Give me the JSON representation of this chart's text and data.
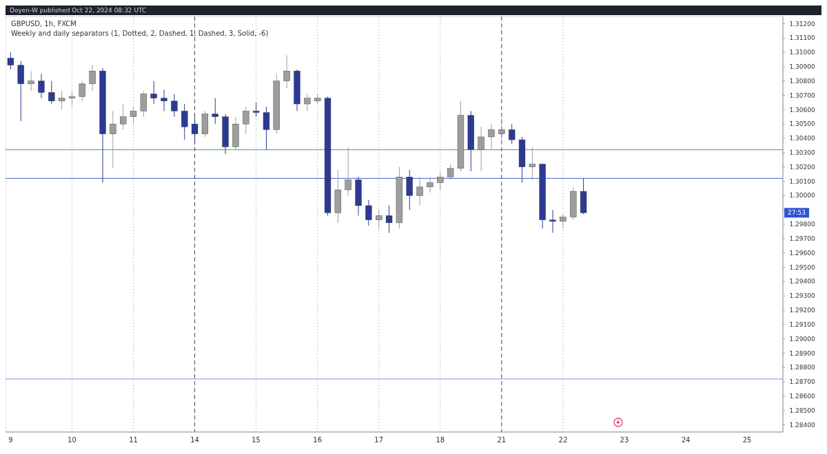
{
  "chart_data": {
    "type": "candlestick",
    "title": "GBPUSD, 1h, FXCM",
    "subtitle": "Weekly and daily separators (1, Dotted, 2, Dashed, 1, Dashed, 3, Solid, -6)",
    "annotations": [
      "Doyen-W published Oct 22, 2024 08:32 UTC",
      {
        "text": "27:53",
        "y": 1.2988
      }
    ],
    "categories": [
      "9",
      null,
      null,
      null,
      null,
      null,
      "10",
      null,
      null,
      null,
      null,
      null,
      "11",
      null,
      null,
      null,
      null,
      null,
      "14",
      null,
      null,
      null,
      null,
      null,
      "15",
      null,
      null,
      null,
      null,
      null,
      "16",
      null,
      null,
      null,
      null,
      null,
      "17",
      null,
      null,
      null,
      null,
      null,
      "18",
      null,
      null,
      null,
      null,
      null,
      "21",
      null,
      null,
      null,
      null,
      null,
      "22",
      null,
      null,
      null,
      null,
      null,
      "23",
      null,
      null,
      null,
      null,
      null,
      "24",
      null,
      null,
      null,
      null,
      null,
      "25",
      null,
      null,
      null
    ],
    "ohlc": [
      [
        1.3096,
        1.31,
        1.3088,
        1.3091
      ],
      [
        1.3091,
        1.3094,
        1.3052,
        1.3078
      ],
      [
        1.3078,
        1.3087,
        1.3073,
        1.308
      ],
      [
        1.308,
        1.3085,
        1.3068,
        1.3072
      ],
      [
        1.3072,
        1.308,
        1.3064,
        1.3066
      ],
      [
        1.3066,
        1.3073,
        1.306,
        1.3068
      ],
      [
        1.3068,
        1.3073,
        1.3063,
        1.3069
      ],
      [
        1.3069,
        1.308,
        1.3066,
        1.3078
      ],
      [
        1.3078,
        1.3091,
        1.3073,
        1.3087
      ],
      [
        1.3087,
        1.3089,
        1.3009,
        1.3043
      ],
      [
        1.3043,
        1.3059,
        1.3019,
        1.305
      ],
      [
        1.305,
        1.3064,
        1.3046,
        1.3055
      ],
      [
        1.3055,
        1.3062,
        1.305,
        1.3059
      ],
      [
        1.3059,
        1.3073,
        1.3055,
        1.3071
      ],
      [
        1.3071,
        1.308,
        1.3064,
        1.3068
      ],
      [
        1.3068,
        1.3074,
        1.3059,
        1.3066
      ],
      [
        1.3066,
        1.3071,
        1.3055,
        1.3059
      ],
      [
        1.3059,
        1.3064,
        1.3039,
        1.3048
      ],
      [
        1.305,
        1.3055,
        1.3036,
        1.3043
      ],
      [
        1.3043,
        1.3059,
        1.3041,
        1.3057
      ],
      [
        1.3057,
        1.3068,
        1.305,
        1.3055
      ],
      [
        1.3055,
        1.3057,
        1.3029,
        1.3034
      ],
      [
        1.3034,
        1.3055,
        1.3032,
        1.305
      ],
      [
        1.305,
        1.3062,
        1.3043,
        1.3059
      ],
      [
        1.3059,
        1.3065,
        1.3055,
        1.3058
      ],
      [
        1.3058,
        1.3062,
        1.3032,
        1.3046
      ],
      [
        1.3046,
        1.3085,
        1.3043,
        1.308
      ],
      [
        1.308,
        1.3098,
        1.3075,
        1.3087
      ],
      [
        1.3087,
        1.3088,
        1.3059,
        1.3064
      ],
      [
        1.3064,
        1.3071,
        1.3059,
        1.3068
      ],
      [
        1.3066,
        1.3071,
        1.3064,
        1.3068
      ],
      [
        1.3068,
        1.3069,
        1.2986,
        1.2988
      ],
      [
        1.2988,
        1.3018,
        1.2981,
        1.3004
      ],
      [
        1.3004,
        1.3034,
        1.3,
        1.3011
      ],
      [
        1.3011,
        1.3013,
        1.2986,
        1.2993
      ],
      [
        1.2993,
        1.2997,
        1.2979,
        1.2983
      ],
      [
        1.2983,
        1.299,
        1.2977,
        1.2986
      ],
      [
        1.2986,
        1.2993,
        1.2974,
        1.2981
      ],
      [
        1.2981,
        1.302,
        1.2977,
        1.3013
      ],
      [
        1.3013,
        1.3018,
        1.299,
        1.3
      ],
      [
        1.3,
        1.3013,
        1.2993,
        1.3006
      ],
      [
        1.3006,
        1.3013,
        1.3002,
        1.3009
      ],
      [
        1.3009,
        1.3016,
        1.3004,
        1.3013
      ],
      [
        1.3013,
        1.3022,
        1.3011,
        1.3019
      ],
      [
        1.3019,
        1.3066,
        1.3017,
        1.3056
      ],
      [
        1.3056,
        1.3059,
        1.3017,
        1.3032
      ],
      [
        1.3032,
        1.3048,
        1.3017,
        1.3041
      ],
      [
        1.3041,
        1.305,
        1.3032,
        1.3046
      ],
      [
        1.3043,
        1.3054,
        1.3039,
        1.3046
      ],
      [
        1.3046,
        1.305,
        1.3036,
        1.3039
      ],
      [
        1.3039,
        1.3041,
        1.3009,
        1.302
      ],
      [
        1.302,
        1.3034,
        1.3011,
        1.3022
      ],
      [
        1.3022,
        1.3022,
        1.2977,
        1.2983
      ],
      [
        1.2983,
        1.299,
        1.2974,
        1.2982
      ],
      [
        1.2982,
        1.2987,
        1.2977,
        1.2985
      ],
      [
        1.2985,
        1.3006,
        1.2983,
        1.3003
      ],
      [
        1.3003,
        1.3012,
        1.2987,
        1.2988
      ],
      null,
      null,
      null,
      null,
      null,
      null,
      null,
      null,
      null,
      null,
      null,
      null,
      null,
      null,
      null,
      null,
      null,
      null,
      null
    ],
    "colors": [
      "#2c3a94",
      "#2c3a94",
      "#9e9e9e",
      "#2c3a94",
      "#2c3a94",
      "#9e9e9e",
      "#9e9e9e",
      "#9e9e9e",
      "#9e9e9e",
      "#2c3a94",
      "#9e9e9e",
      "#9e9e9e",
      "#9e9e9e",
      "#9e9e9e",
      "#2c3a94",
      "#2c3a94",
      "#2c3a94",
      "#2c3a94",
      "#2c3a94",
      "#9e9e9e",
      "#2c3a94",
      "#2c3a94",
      "#9e9e9e",
      "#9e9e9e",
      "#2c3a94",
      "#2c3a94",
      "#9e9e9e",
      "#9e9e9e",
      "#2c3a94",
      "#9e9e9e",
      "#9e9e9e",
      "#2c3a94",
      "#9e9e9e",
      "#9e9e9e",
      "#2c3a94",
      "#2c3a94",
      "#9e9e9e",
      "#2c3a94",
      "#9e9e9e",
      "#2c3a94",
      "#9e9e9e",
      "#9e9e9e",
      "#9e9e9e",
      "#9e9e9e",
      "#9e9e9e",
      "#2c3a94",
      "#9e9e9e",
      "#9e9e9e",
      "#9e9e9e",
      "#2c3a94",
      "#2c3a94",
      "#9e9e9e",
      "#2c3a94",
      "#2c3a94",
      "#9e9e9e",
      "#9e9e9e",
      "#2c3a94",
      null,
      null,
      null,
      null,
      null,
      null,
      null,
      null,
      null,
      null,
      null,
      null,
      null,
      null,
      null,
      null,
      null,
      null,
      null
    ],
    "ylim": [
      1.2835,
      1.3125
    ],
    "yticks": [
      {
        "value": 1.284,
        "label": "1.28400"
      },
      {
        "value": 1.285,
        "label": "1.28500"
      },
      {
        "value": 1.286,
        "label": "1.28600"
      },
      {
        "value": 1.287,
        "label": "1.28700"
      },
      {
        "value": 1.288,
        "label": "1.28800"
      },
      {
        "value": 1.289,
        "label": "1.28900"
      },
      {
        "value": 1.29,
        "label": "1.29000"
      },
      {
        "value": 1.291,
        "label": "1.29100"
      },
      {
        "value": 1.292,
        "label": "1.29200"
      },
      {
        "value": 1.293,
        "label": "1.29300"
      },
      {
        "value": 1.294,
        "label": "1.29400"
      },
      {
        "value": 1.295,
        "label": "1.29500"
      },
      {
        "value": 1.296,
        "label": "1.29600"
      },
      {
        "value": 1.297,
        "label": "1.29700"
      },
      {
        "value": 1.298,
        "label": "1.29800"
      },
      {
        "value": 1.299,
        "label": null
      },
      {
        "value": 1.3,
        "label": "1.30000"
      },
      {
        "value": 1.301,
        "label": "1.30100"
      },
      {
        "value": 1.302,
        "label": "1.30200"
      },
      {
        "value": 1.303,
        "label": "1.30300"
      },
      {
        "value": 1.304,
        "label": "1.30400"
      },
      {
        "value": 1.305,
        "label": "1.30500"
      },
      {
        "value": 1.306,
        "label": "1.30600"
      },
      {
        "value": 1.307,
        "label": "1.30700"
      },
      {
        "value": 1.308,
        "label": "1.30800"
      },
      {
        "value": 1.309,
        "label": "1.30900"
      },
      {
        "value": 1.31,
        "label": "1.31000"
      },
      {
        "value": 1.311,
        "label": "1.31100"
      },
      {
        "value": 1.312,
        "label": "1.31200"
      }
    ],
    "ref_lines": [
      {
        "axis": "y",
        "value": 1.3012,
        "color": "#3f5bd6",
        "line_style": "solid"
      },
      {
        "axis": "y",
        "value": 1.3032,
        "color": "#2e9e8a",
        "line_style": "solid"
      },
      {
        "axis": "y",
        "value": 1.2872,
        "color": "#7d8fe0",
        "line_style": "solid"
      },
      {
        "axis": "x",
        "value": "10",
        "color": "#b0b0b0",
        "line_style": "dotted"
      },
      {
        "axis": "x",
        "value": "11",
        "color": "#b0b0b0",
        "line_style": "dotted"
      },
      {
        "axis": "x",
        "value": "14",
        "color": "#444444",
        "line_style": "dashed"
      },
      {
        "axis": "x",
        "value": "15",
        "color": "#b0b0b0",
        "line_style": "dotted"
      },
      {
        "axis": "x",
        "value": "16",
        "color": "#b0b0b0",
        "line_style": "dotted"
      },
      {
        "axis": "x",
        "value": "17",
        "color": "#b0b0b0",
        "line_style": "dotted"
      },
      {
        "axis": "x",
        "value": "18",
        "color": "#b0b0b0",
        "line_style": "dotted"
      },
      {
        "axis": "x",
        "value": "21",
        "color": "#444444",
        "line_style": "dashed"
      },
      {
        "axis": "x",
        "value": "22",
        "color": "#b0b0b0",
        "line_style": "dotted"
      }
    ]
  }
}
